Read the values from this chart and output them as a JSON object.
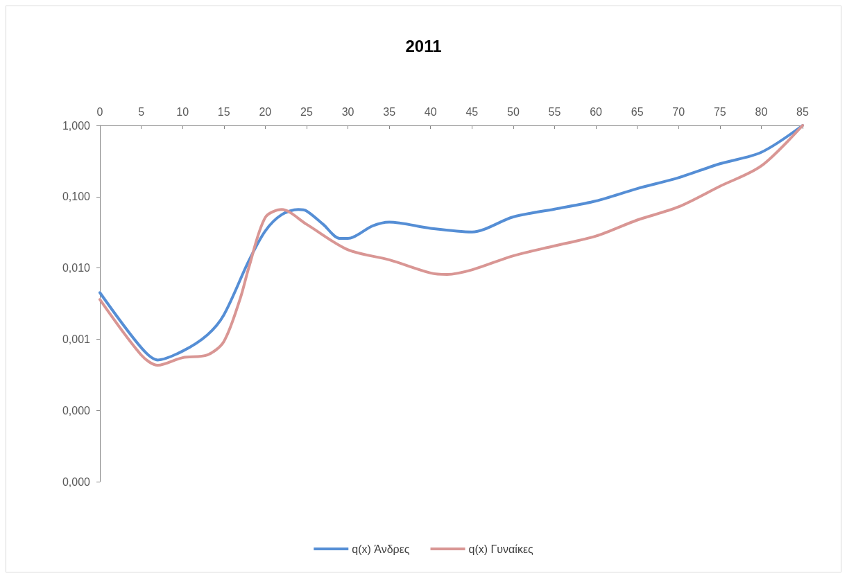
{
  "chart_data": {
    "type": "line",
    "title": "2011",
    "log": "y",
    "grid": false,
    "legend": "bottom",
    "marker": "none",
    "line_style": "solid",
    "xlim": [
      0,
      85
    ],
    "xticks": [
      0,
      5,
      10,
      15,
      20,
      25,
      30,
      35,
      40,
      45,
      50,
      55,
      60,
      65,
      70,
      75,
      80,
      85
    ],
    "ylim": [
      1e-05,
      1
    ],
    "yticks": [
      {
        "value": 1,
        "label": "1,000"
      },
      {
        "value": 0.1,
        "label": "0,100"
      },
      {
        "value": 0.01,
        "label": "0,010"
      },
      {
        "value": 0.001,
        "label": "0,001"
      },
      {
        "value": 0.0001,
        "label": "0,000"
      },
      {
        "value": 1e-05,
        "label": "0,000"
      }
    ],
    "series": [
      {
        "name": "q(x) Άνδρες",
        "color": "#558ed5",
        "x": [
          0,
          5,
          7,
          10,
          13,
          15,
          18,
          20,
          22,
          24,
          25,
          27,
          29,
          30,
          33,
          35,
          40,
          45,
          50,
          55,
          60,
          65,
          70,
          75,
          80,
          85
        ],
        "values": [
          0.0045,
          0.00076,
          0.00051,
          0.00068,
          0.00115,
          0.0022,
          0.0125,
          0.033,
          0.056,
          0.066,
          0.063,
          0.041,
          0.026,
          0.026,
          0.039,
          0.044,
          0.036,
          0.032,
          0.052,
          0.067,
          0.087,
          0.13,
          0.185,
          0.29,
          0.42,
          1
        ]
      },
      {
        "name": "q(x) Γυναίκες",
        "color": "#d99694",
        "x": [
          0,
          5,
          7,
          10,
          13,
          15,
          17,
          18,
          20,
          22,
          25,
          30,
          35,
          40,
          42,
          45,
          50,
          55,
          60,
          65,
          70,
          75,
          80,
          85
        ],
        "values": [
          0.0036,
          0.0006,
          0.00043,
          0.00055,
          0.0006,
          0.00093,
          0.0038,
          0.01,
          0.051,
          0.066,
          0.041,
          0.018,
          0.013,
          0.0085,
          0.0081,
          0.0094,
          0.0148,
          0.0204,
          0.028,
          0.047,
          0.072,
          0.14,
          0.27,
          1
        ]
      }
    ]
  }
}
